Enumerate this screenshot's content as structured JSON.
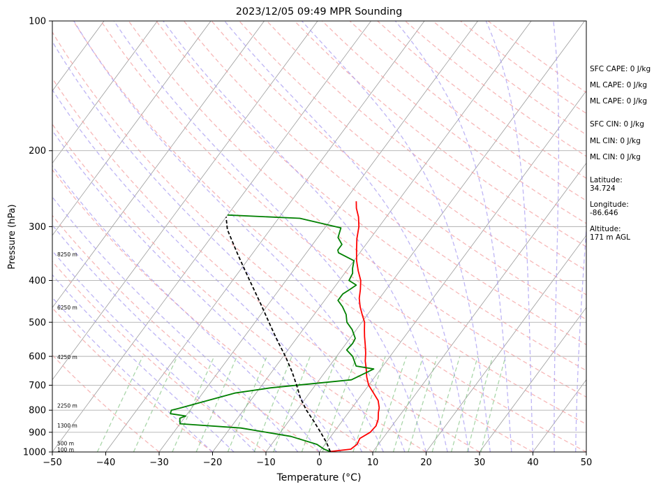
{
  "chart_data": {
    "type": "line",
    "title": "2023/12/05 09:49 MPR Sounding",
    "xlabel": "Temperature (°C)",
    "ylabel": "Pressure (hPa)",
    "xlim": [
      -50,
      50
    ],
    "ylim": [
      1000,
      100
    ],
    "y_scale": "log",
    "grid": true,
    "x_ticks": [
      "−50",
      "−40",
      "−30",
      "−20",
      "−10",
      "0",
      "10",
      "20",
      "30",
      "40",
      "50"
    ],
    "x_tick_values": [
      -50,
      -40,
      -30,
      -20,
      -10,
      0,
      10,
      20,
      30,
      40,
      50
    ],
    "y_ticks": [
      "100",
      "200",
      "300",
      "400",
      "500",
      "600",
      "700",
      "800",
      "900",
      "1000"
    ],
    "y_tick_values": [
      100,
      200,
      300,
      400,
      500,
      600,
      700,
      800,
      900,
      1000
    ],
    "height_labels": [
      {
        "text": "100 m",
        "p": 987
      },
      {
        "text": "500 m",
        "p": 955
      },
      {
        "text": "1300 m",
        "p": 868
      },
      {
        "text": "2250 m",
        "p": 780
      },
      {
        "text": "4250 m",
        "p": 602
      },
      {
        "text": "6250 m",
        "p": 462
      },
      {
        "text": "8250 m",
        "p": 348
      }
    ],
    "series": [
      {
        "role": "temperature",
        "color": "#ff0000",
        "points": [
          [
            1.8,
            998
          ],
          [
            5.5,
            985
          ],
          [
            6.0,
            960
          ],
          [
            5.7,
            930
          ],
          [
            6.8,
            900
          ],
          [
            7.0,
            870
          ],
          [
            6.5,
            840
          ],
          [
            5.6,
            810
          ],
          [
            5.1,
            790
          ],
          [
            3.9,
            760
          ],
          [
            2.0,
            730
          ],
          [
            0.0,
            700
          ],
          [
            -1.5,
            670
          ],
          [
            -2.8,
            640
          ],
          [
            -4.0,
            615
          ],
          [
            -5.0,
            590
          ],
          [
            -6.2,
            565
          ],
          [
            -7.5,
            540
          ],
          [
            -8.5,
            520
          ],
          [
            -9.5,
            500
          ],
          [
            -11.0,
            480
          ],
          [
            -12.5,
            460
          ],
          [
            -13.8,
            440
          ],
          [
            -14.8,
            420
          ],
          [
            -16.0,
            400
          ],
          [
            -17.8,
            380
          ],
          [
            -19.5,
            360
          ],
          [
            -21.0,
            340
          ],
          [
            -22.5,
            320
          ],
          [
            -23.8,
            300
          ],
          [
            -25.2,
            285
          ],
          [
            -26.8,
            272
          ],
          [
            -27.8,
            262
          ]
        ]
      },
      {
        "role": "dewpoint",
        "color": "#008000",
        "points": [
          [
            2.0,
            998
          ],
          [
            0.5,
            985
          ],
          [
            -1.5,
            960
          ],
          [
            -7.5,
            920
          ],
          [
            -18.0,
            880
          ],
          [
            -30.0,
            860
          ],
          [
            -30.8,
            835
          ],
          [
            -30.0,
            825
          ],
          [
            -33.2,
            815
          ],
          [
            -33.5,
            800
          ],
          [
            -32.0,
            790
          ],
          [
            -24.0,
            730
          ],
          [
            -18.0,
            710
          ],
          [
            -4.0,
            680
          ],
          [
            -1.3,
            642
          ],
          [
            -5.0,
            632
          ],
          [
            -7.0,
            600
          ],
          [
            -9.0,
            580
          ],
          [
            -8.8,
            560
          ],
          [
            -9.0,
            545
          ],
          [
            -10.8,
            520
          ],
          [
            -12.8,
            500
          ],
          [
            -14.0,
            480
          ],
          [
            -15.8,
            460
          ],
          [
            -17.5,
            445
          ],
          [
            -17.5,
            430
          ],
          [
            -16.8,
            420
          ],
          [
            -16.2,
            410
          ],
          [
            -18.2,
            400
          ],
          [
            -18.5,
            385
          ],
          [
            -19.2,
            375
          ],
          [
            -20.0,
            360
          ],
          [
            -24.0,
            345
          ],
          [
            -24.5,
            340
          ],
          [
            -24.5,
            330
          ],
          [
            -26.2,
            318
          ],
          [
            -27.0,
            302
          ],
          [
            -36.0,
            287
          ],
          [
            -50.0,
            282
          ]
        ]
      },
      {
        "role": "parcel",
        "color": "#000000",
        "points": [
          [
            2.0,
            998
          ],
          [
            0.0,
            950
          ],
          [
            -2.5,
            900
          ],
          [
            -5.2,
            850
          ],
          [
            -8.2,
            800
          ],
          [
            -11.0,
            750
          ],
          [
            -13.5,
            700
          ],
          [
            -16.3,
            650
          ],
          [
            -19.6,
            600
          ],
          [
            -23.4,
            550
          ],
          [
            -27.4,
            500
          ],
          [
            -31.8,
            450
          ],
          [
            -36.8,
            400
          ],
          [
            -42.4,
            350
          ],
          [
            -48.0,
            305
          ],
          [
            -50.0,
            285
          ]
        ]
      }
    ],
    "annotations": [
      "SFC CAPE: 0 J/kg",
      "ML CAPE: 0 J/kg",
      "ML CAPE: 0 J/kg",
      "SFC CIN: 0 J/kg",
      "ML CIN: 0 J/kg",
      "ML CIN: 0 J/kg"
    ]
  },
  "location": {
    "latitude_label": "Latitude:",
    "latitude_value": "34.724",
    "longitude_label": "Longitude:",
    "longitude_value": "-86.646",
    "altitude_label": "Altitude:",
    "altitude_value": "171 m AGL"
  }
}
